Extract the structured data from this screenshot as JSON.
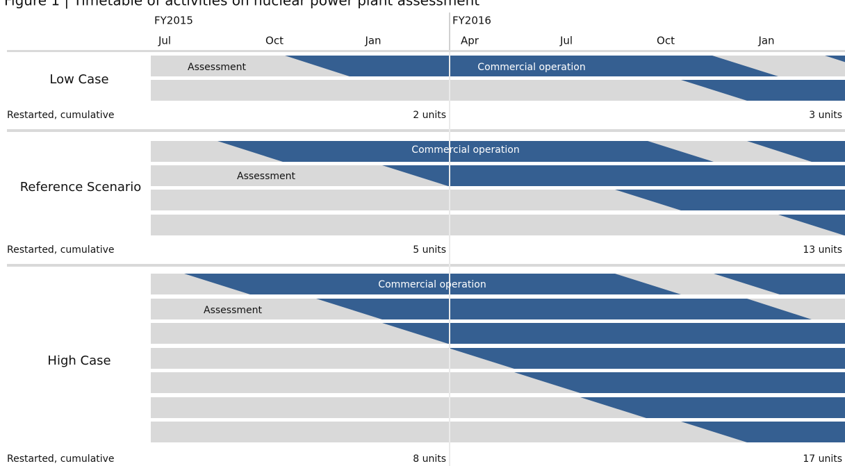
{
  "title": "Figure 1 | Timetable of activities on nuclear power plant assessment",
  "fiscal_years": [
    "FY2015",
    "FY2016"
  ],
  "months": [
    "Jul",
    "Oct",
    "Jan",
    "Apr",
    "Jul",
    "Oct",
    "Jan"
  ],
  "sections": [
    {
      "name": "Low Case",
      "assessment": "Assessment",
      "operation": "Commercial operation",
      "restarted": "Restarted, cumulative",
      "units": [
        "2 units",
        "3 units"
      ]
    },
    {
      "name": "Reference Scenario",
      "assessment": "Assessment",
      "operation": "Commercial operation",
      "restarted": "Restarted, cumulative",
      "units": [
        "5 units",
        "13 units"
      ]
    },
    {
      "name": "High Case",
      "assessment": "Assessment",
      "operation": "Commercial operation",
      "restarted": "Restarted, cumulative",
      "units": [
        "8 units",
        "17 units"
      ]
    }
  ]
}
